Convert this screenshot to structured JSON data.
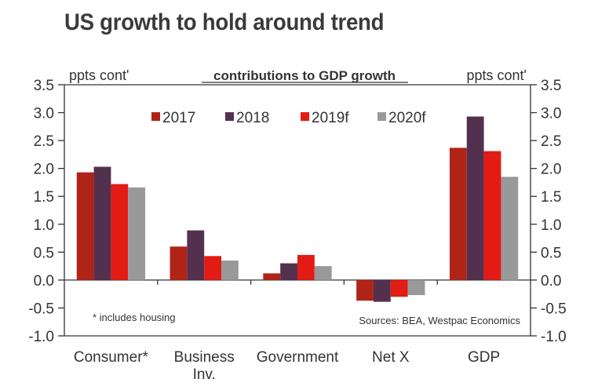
{
  "chart_data": {
    "type": "bar",
    "title": "US growth to hold around trend",
    "subtitle": "contributions to GDP growth",
    "ylabel_left": "ppts cont'",
    "ylabel_right": "ppts cont'",
    "xlabel": "",
    "ylim": [
      -1.0,
      3.5
    ],
    "yticks": [
      3.5,
      3.0,
      2.5,
      2.0,
      1.5,
      1.0,
      0.5,
      0.0,
      -0.5,
      -1.0
    ],
    "ytick_labels": [
      "3.5",
      "3.0",
      "2.5",
      "2.0",
      "1.5",
      "1.0",
      "0.5",
      "0.0",
      "-0.5",
      "-1.0"
    ],
    "categories": [
      {
        "lines": [
          "Consumer*"
        ]
      },
      {
        "lines": [
          "Business",
          "Inv."
        ]
      },
      {
        "lines": [
          "Government"
        ]
      },
      {
        "lines": [
          "Net X"
        ]
      },
      {
        "lines": [
          "GDP"
        ]
      }
    ],
    "series": [
      {
        "name": "2017",
        "color": "#b02418",
        "values": [
          1.93,
          0.6,
          0.12,
          -0.37,
          2.37
        ]
      },
      {
        "name": "2018",
        "color": "#54304f",
        "values": [
          2.03,
          0.89,
          0.3,
          -0.39,
          2.93
        ]
      },
      {
        "name": "2019f",
        "color": "#e21b14",
        "values": [
          1.72,
          0.43,
          0.45,
          -0.3,
          2.31
        ]
      },
      {
        "name": "2020f",
        "color": "#999999",
        "values": [
          1.66,
          0.35,
          0.25,
          -0.27,
          1.85
        ]
      }
    ],
    "legend_position": "top-center",
    "grid": false,
    "annotations": {
      "footnote": "* includes housing",
      "source": "Sources: BEA, Westpac Economics"
    }
  }
}
